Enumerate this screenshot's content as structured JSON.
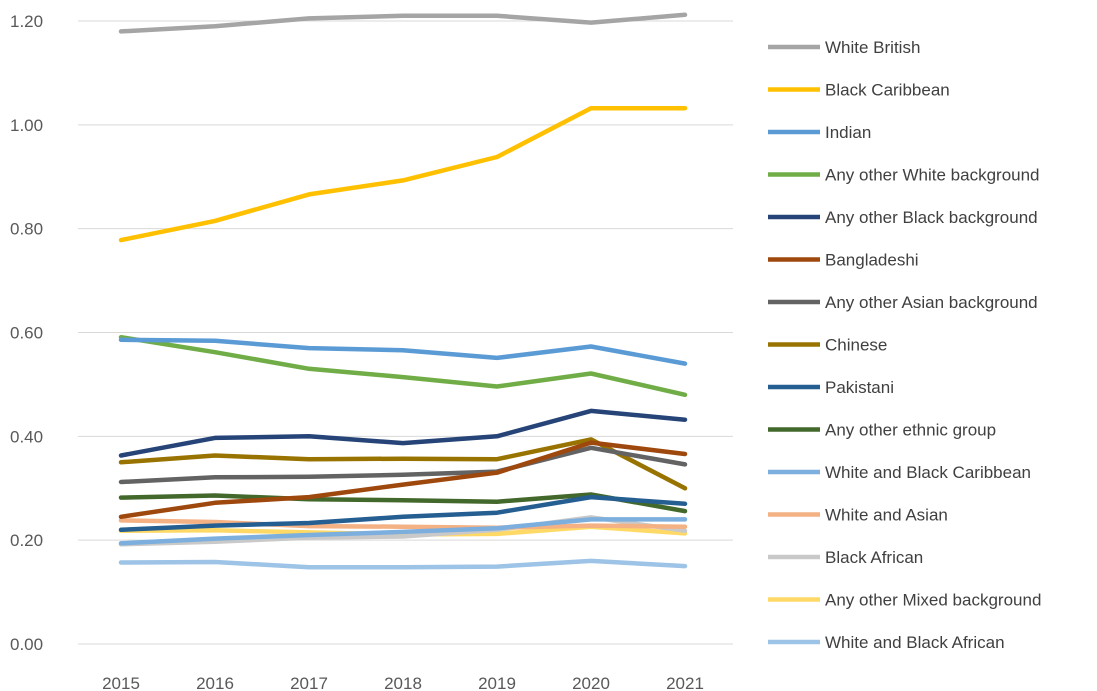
{
  "chart_data": {
    "type": "line",
    "title": "",
    "xlabel": "",
    "ylabel": "",
    "x": [
      2015,
      2016,
      2017,
      2018,
      2019,
      2020,
      2021
    ],
    "ylim": [
      0,
      1.2
    ],
    "yticks": [
      "0.00",
      "0.20",
      "0.40",
      "0.60",
      "0.80",
      "1.00",
      "1.20"
    ],
    "grid": "horizontal",
    "legend_position": "right",
    "series": [
      {
        "name": "White British",
        "color": "#a5a5a5",
        "values": [
          1.18,
          1.19,
          1.205,
          1.21,
          1.21,
          1.197,
          1.212
        ]
      },
      {
        "name": "Black Caribbean",
        "color": "#ffc000",
        "values": [
          0.778,
          0.815,
          0.866,
          0.893,
          0.938,
          1.032,
          1.032
        ]
      },
      {
        "name": "Indian",
        "color": "#5b9bd5",
        "values": [
          0.586,
          0.584,
          0.57,
          0.566,
          0.551,
          0.573,
          0.54
        ]
      },
      {
        "name": "Any other White background",
        "color": "#70ad47",
        "values": [
          0.591,
          0.562,
          0.53,
          0.514,
          0.496,
          0.521,
          0.48
        ]
      },
      {
        "name": "Any other Black background",
        "color": "#264478",
        "values": [
          0.363,
          0.397,
          0.4,
          0.387,
          0.4,
          0.449,
          0.432
        ]
      },
      {
        "name": "Bangladeshi",
        "color": "#9e480e",
        "values": [
          0.245,
          0.272,
          0.283,
          0.307,
          0.33,
          0.388,
          0.366
        ]
      },
      {
        "name": "Any other Asian background",
        "color": "#636363",
        "values": [
          0.312,
          0.321,
          0.322,
          0.326,
          0.332,
          0.378,
          0.346
        ]
      },
      {
        "name": "Chinese",
        "color": "#997300",
        "values": [
          0.35,
          0.363,
          0.356,
          0.357,
          0.356,
          0.394,
          0.3
        ]
      },
      {
        "name": "Pakistani",
        "color": "#255e91",
        "values": [
          0.22,
          0.228,
          0.233,
          0.245,
          0.253,
          0.283,
          0.27
        ]
      },
      {
        "name": "Any other ethnic group",
        "color": "#43682b",
        "values": [
          0.282,
          0.286,
          0.279,
          0.277,
          0.274,
          0.288,
          0.256
        ]
      },
      {
        "name": "White and Black Caribbean",
        "color": "#7cafdd",
        "values": [
          0.194,
          0.203,
          0.21,
          0.216,
          0.223,
          0.24,
          0.24
        ]
      },
      {
        "name": "White and Asian",
        "color": "#f4b183",
        "values": [
          0.238,
          0.235,
          0.227,
          0.226,
          0.224,
          0.228,
          0.226
        ]
      },
      {
        "name": "Black African",
        "color": "#c9c9c9",
        "values": [
          0.192,
          0.197,
          0.205,
          0.207,
          0.22,
          0.244,
          0.218
        ]
      },
      {
        "name": "Any other Mixed background",
        "color": "#ffd966",
        "values": [
          0.218,
          0.219,
          0.215,
          0.211,
          0.212,
          0.226,
          0.213
        ]
      },
      {
        "name": "White and Black African",
        "color": "#9dc3e6",
        "values": [
          0.157,
          0.158,
          0.148,
          0.148,
          0.149,
          0.16,
          0.15
        ]
      }
    ]
  }
}
